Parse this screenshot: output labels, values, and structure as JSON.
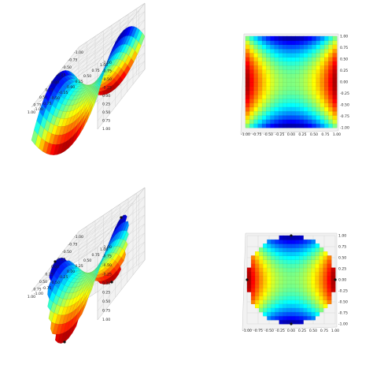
{
  "figure": {
    "colormap": "jet",
    "background": "#ffffff",
    "pane_color": "#f2f2f2",
    "grid_color": "#cccccc",
    "marker_color": "#111111"
  },
  "chart_data": [
    {
      "type": "surface3d",
      "view": "perspective",
      "domain": "square",
      "function": "z = x^2 - y^2",
      "x": [
        -1.0,
        -0.75,
        -0.5,
        -0.25,
        0.0,
        0.25,
        0.5,
        0.75,
        1.0
      ],
      "y": [
        -1.0,
        -0.75,
        -0.5,
        -0.25,
        0.0,
        0.25,
        0.5,
        0.75,
        1.0
      ],
      "zlim": [
        -1.0,
        1.0
      ],
      "x_ticks": [
        "-1.00",
        "-0.75",
        "-0.50",
        "-0.25",
        "0.00",
        "0.25",
        "0.50",
        "0.75",
        "1.00"
      ],
      "y_ticks": [
        "-1.00",
        "-0.75",
        "-0.50",
        "-0.25",
        "0.00",
        "0.25",
        "0.50",
        "0.75",
        "1.00"
      ],
      "z_ticks": [
        "-1.00",
        "-0.75",
        "-0.50",
        "-0.25",
        "0.00",
        "0.25",
        "0.50",
        "0.75",
        "1.00"
      ],
      "grid": true
    },
    {
      "type": "surface3d",
      "view": "top",
      "domain": "square",
      "function": "z = x^2 - y^2",
      "zlim": [
        -1.0,
        1.0
      ],
      "x_ticks": [
        "-1.00",
        "-0.75",
        "-0.50",
        "-0.25",
        "0.00",
        "0.25",
        "0.50",
        "0.75",
        "1.00"
      ],
      "y_ticks": [
        "-1.00",
        "-0.75",
        "-0.50",
        "-0.25",
        "0.00",
        "0.25",
        "0.50",
        "0.75",
        "1.00"
      ],
      "grid": true
    },
    {
      "type": "surface3d",
      "view": "perspective",
      "domain": "disk",
      "function": "z = x^2 - y^2",
      "zlim": [
        -1.0,
        1.0
      ],
      "markers": [
        [
          1,
          0
        ],
        [
          -1,
          0
        ],
        [
          0,
          1
        ],
        [
          0,
          -1
        ]
      ],
      "x_ticks": [
        "-1.00",
        "-0.75",
        "-0.50",
        "-0.25",
        "0.00",
        "0.25",
        "0.50",
        "0.75",
        "1.00"
      ],
      "y_ticks": [
        "-1.00",
        "-0.75",
        "-0.50",
        "-0.25",
        "0.00",
        "0.25",
        "0.50",
        "0.75",
        "1.00"
      ],
      "z_ticks": [
        "-1.00",
        "-0.75",
        "-0.50",
        "-0.25",
        "0.00",
        "0.25",
        "0.50",
        "0.75",
        "1.00"
      ],
      "grid": true
    },
    {
      "type": "surface3d",
      "view": "top",
      "domain": "disk",
      "function": "z = x^2 - y^2",
      "zlim": [
        -1.0,
        1.0
      ],
      "markers": [
        [
          1,
          0
        ],
        [
          -1,
          0
        ],
        [
          0,
          1
        ],
        [
          0,
          -1
        ]
      ],
      "x_ticks": [
        "-1.00",
        "-0.75",
        "-0.50",
        "-0.25",
        "0.00",
        "0.25",
        "0.50",
        "0.75",
        "1.00"
      ],
      "y_ticks": [
        "-1.00",
        "-0.75",
        "-0.50",
        "-0.25",
        "0.00",
        "0.25",
        "0.50",
        "0.75",
        "1.00"
      ],
      "grid": true
    }
  ]
}
